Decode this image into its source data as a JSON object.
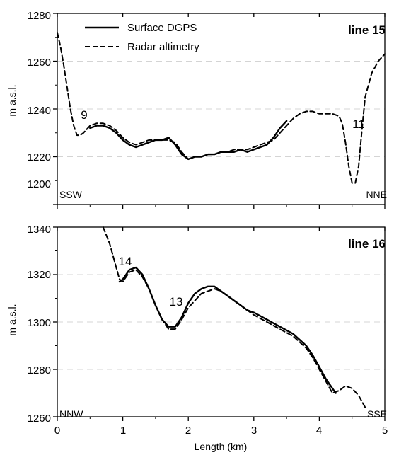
{
  "chart_data": [
    {
      "type": "line",
      "title": "line 15",
      "ylabel": "m a.s.l.",
      "xlabel": "",
      "xlim": [
        0,
        5
      ],
      "ylim": [
        1200,
        1280
      ],
      "x_ticks": [
        0,
        1,
        2,
        3,
        4,
        5
      ],
      "y_ticks": [
        1200,
        1220,
        1240,
        1260,
        1280
      ],
      "y_tick_labels": [
        "1200",
        "1220",
        "1240",
        "1260",
        "1280"
      ],
      "grid": "horizontal dashed",
      "legend": {
        "placement": "top-left",
        "entries": [
          {
            "label": "Surface DGPS",
            "style": "solid"
          },
          {
            "label": "Radar altimetry",
            "style": "dashed"
          }
        ]
      },
      "corner_labels": {
        "left": "SSW",
        "right": "NNE"
      },
      "annotations": [
        {
          "text": "9",
          "x": 0.38,
          "y": 1236
        },
        {
          "text": "11",
          "x": 4.53,
          "y": 1233
        }
      ],
      "series": [
        {
          "name": "Surface DGPS",
          "style": "solid",
          "x": [
            0.5,
            0.6,
            0.7,
            0.8,
            0.9,
            1.0,
            1.1,
            1.2,
            1.3,
            1.4,
            1.5,
            1.6,
            1.7,
            1.8,
            1.9,
            2.0,
            2.1,
            2.2,
            2.3,
            2.4,
            2.5,
            2.6,
            2.7,
            2.8,
            2.9,
            3.0,
            3.1,
            3.2,
            3.3,
            3.4,
            3.5
          ],
          "y": [
            1232,
            1233,
            1233,
            1232,
            1230,
            1227,
            1225,
            1224,
            1225,
            1226,
            1227,
            1227,
            1228,
            1225,
            1221,
            1219,
            1220,
            1220,
            1221,
            1221,
            1222,
            1222,
            1222,
            1223,
            1222,
            1223,
            1224,
            1225,
            1228,
            1232,
            1235
          ]
        },
        {
          "name": "Radar altimetry",
          "style": "dashed",
          "x": [
            0.0,
            0.05,
            0.1,
            0.15,
            0.2,
            0.25,
            0.3,
            0.35,
            0.4,
            0.5,
            0.6,
            0.7,
            0.8,
            0.9,
            1.0,
            1.1,
            1.2,
            1.3,
            1.4,
            1.5,
            1.6,
            1.7,
            1.8,
            1.9,
            2.0,
            2.1,
            2.2,
            2.3,
            2.4,
            2.5,
            2.6,
            2.7,
            2.8,
            2.9,
            3.0,
            3.1,
            3.2,
            3.3,
            3.4,
            3.5,
            3.6,
            3.7,
            3.8,
            3.9,
            4.0,
            4.1,
            4.2,
            4.3,
            4.35,
            4.4,
            4.45,
            4.5,
            4.55,
            4.6,
            4.65,
            4.7,
            4.8,
            4.9,
            5.0
          ],
          "y": [
            1272,
            1266,
            1258,
            1249,
            1240,
            1233,
            1229,
            1229,
            1230,
            1233,
            1234,
            1234,
            1233,
            1231,
            1228,
            1226,
            1225,
            1226,
            1227,
            1227,
            1227,
            1227,
            1226,
            1222,
            1219,
            1220,
            1220,
            1221,
            1221,
            1222,
            1222,
            1223,
            1223,
            1223,
            1224,
            1225,
            1226,
            1227,
            1230,
            1233,
            1236,
            1238,
            1239,
            1239,
            1238,
            1238,
            1238,
            1237,
            1234,
            1226,
            1216,
            1209,
            1209,
            1216,
            1231,
            1245,
            1255,
            1260,
            1263
          ]
        }
      ]
    },
    {
      "type": "line",
      "title": "line 16",
      "ylabel": "m a.s.l.",
      "xlabel": "Length (km)",
      "xlim": [
        0,
        5
      ],
      "ylim": [
        1260,
        1340
      ],
      "x_ticks": [
        0,
        1,
        2,
        3,
        4,
        5
      ],
      "x_tick_labels": [
        "0",
        "1",
        "2",
        "3",
        "4",
        "5"
      ],
      "y_ticks": [
        1260,
        1280,
        1300,
        1320,
        1340
      ],
      "y_tick_labels": [
        "1260",
        "1280",
        "1300",
        "1320",
        "1340"
      ],
      "grid": "horizontal dashed",
      "corner_labels": {
        "left": "NNW",
        "right": "SSE"
      },
      "annotations": [
        {
          "text": "14",
          "x": 1.03,
          "y": 1325
        },
        {
          "text": "13",
          "x": 1.37,
          "y": 1306
        }
      ],
      "series": [
        {
          "name": "Surface DGPS",
          "style": "solid",
          "x": [
            0.95,
            1.0,
            1.1,
            1.2,
            1.3,
            1.4,
            1.5,
            1.6,
            1.7,
            1.8,
            1.9,
            2.0,
            2.1,
            2.2,
            2.3,
            2.4,
            2.5,
            2.6,
            2.7,
            2.8,
            2.9,
            3.0,
            3.2,
            3.4,
            3.6,
            3.8,
            3.9,
            4.0,
            4.1,
            4.2,
            4.25
          ],
          "y": [
            1317,
            1318,
            1322,
            1323,
            1320,
            1314,
            1307,
            1301,
            1298,
            1298,
            1302,
            1308,
            1312,
            1314,
            1315,
            1315,
            1313,
            1311,
            1309,
            1307,
            1305,
            1304,
            1301,
            1298,
            1295,
            1290,
            1286,
            1281,
            1276,
            1272,
            1270
          ]
        },
        {
          "name": "Radar altimetry",
          "style": "dashed",
          "x": [
            0.7,
            0.8,
            0.9,
            0.95,
            1.0,
            1.1,
            1.2,
            1.3,
            1.4,
            1.5,
            1.6,
            1.7,
            1.8,
            1.9,
            2.0,
            2.1,
            2.2,
            2.3,
            2.4,
            2.5,
            2.6,
            2.7,
            2.8,
            2.9,
            3.0,
            3.2,
            3.4,
            3.6,
            3.8,
            3.9,
            4.0,
            4.1,
            4.2,
            4.3,
            4.4,
            4.5,
            4.6,
            4.7
          ],
          "y": [
            1340,
            1333,
            1323,
            1318,
            1317,
            1321,
            1322,
            1319,
            1314,
            1307,
            1301,
            1297,
            1297,
            1301,
            1306,
            1309,
            1312,
            1313,
            1314,
            1313,
            1311,
            1309,
            1307,
            1305,
            1303,
            1300,
            1297,
            1294,
            1289,
            1285,
            1280,
            1275,
            1270,
            1271,
            1273,
            1272,
            1269,
            1264
          ]
        }
      ]
    }
  ]
}
